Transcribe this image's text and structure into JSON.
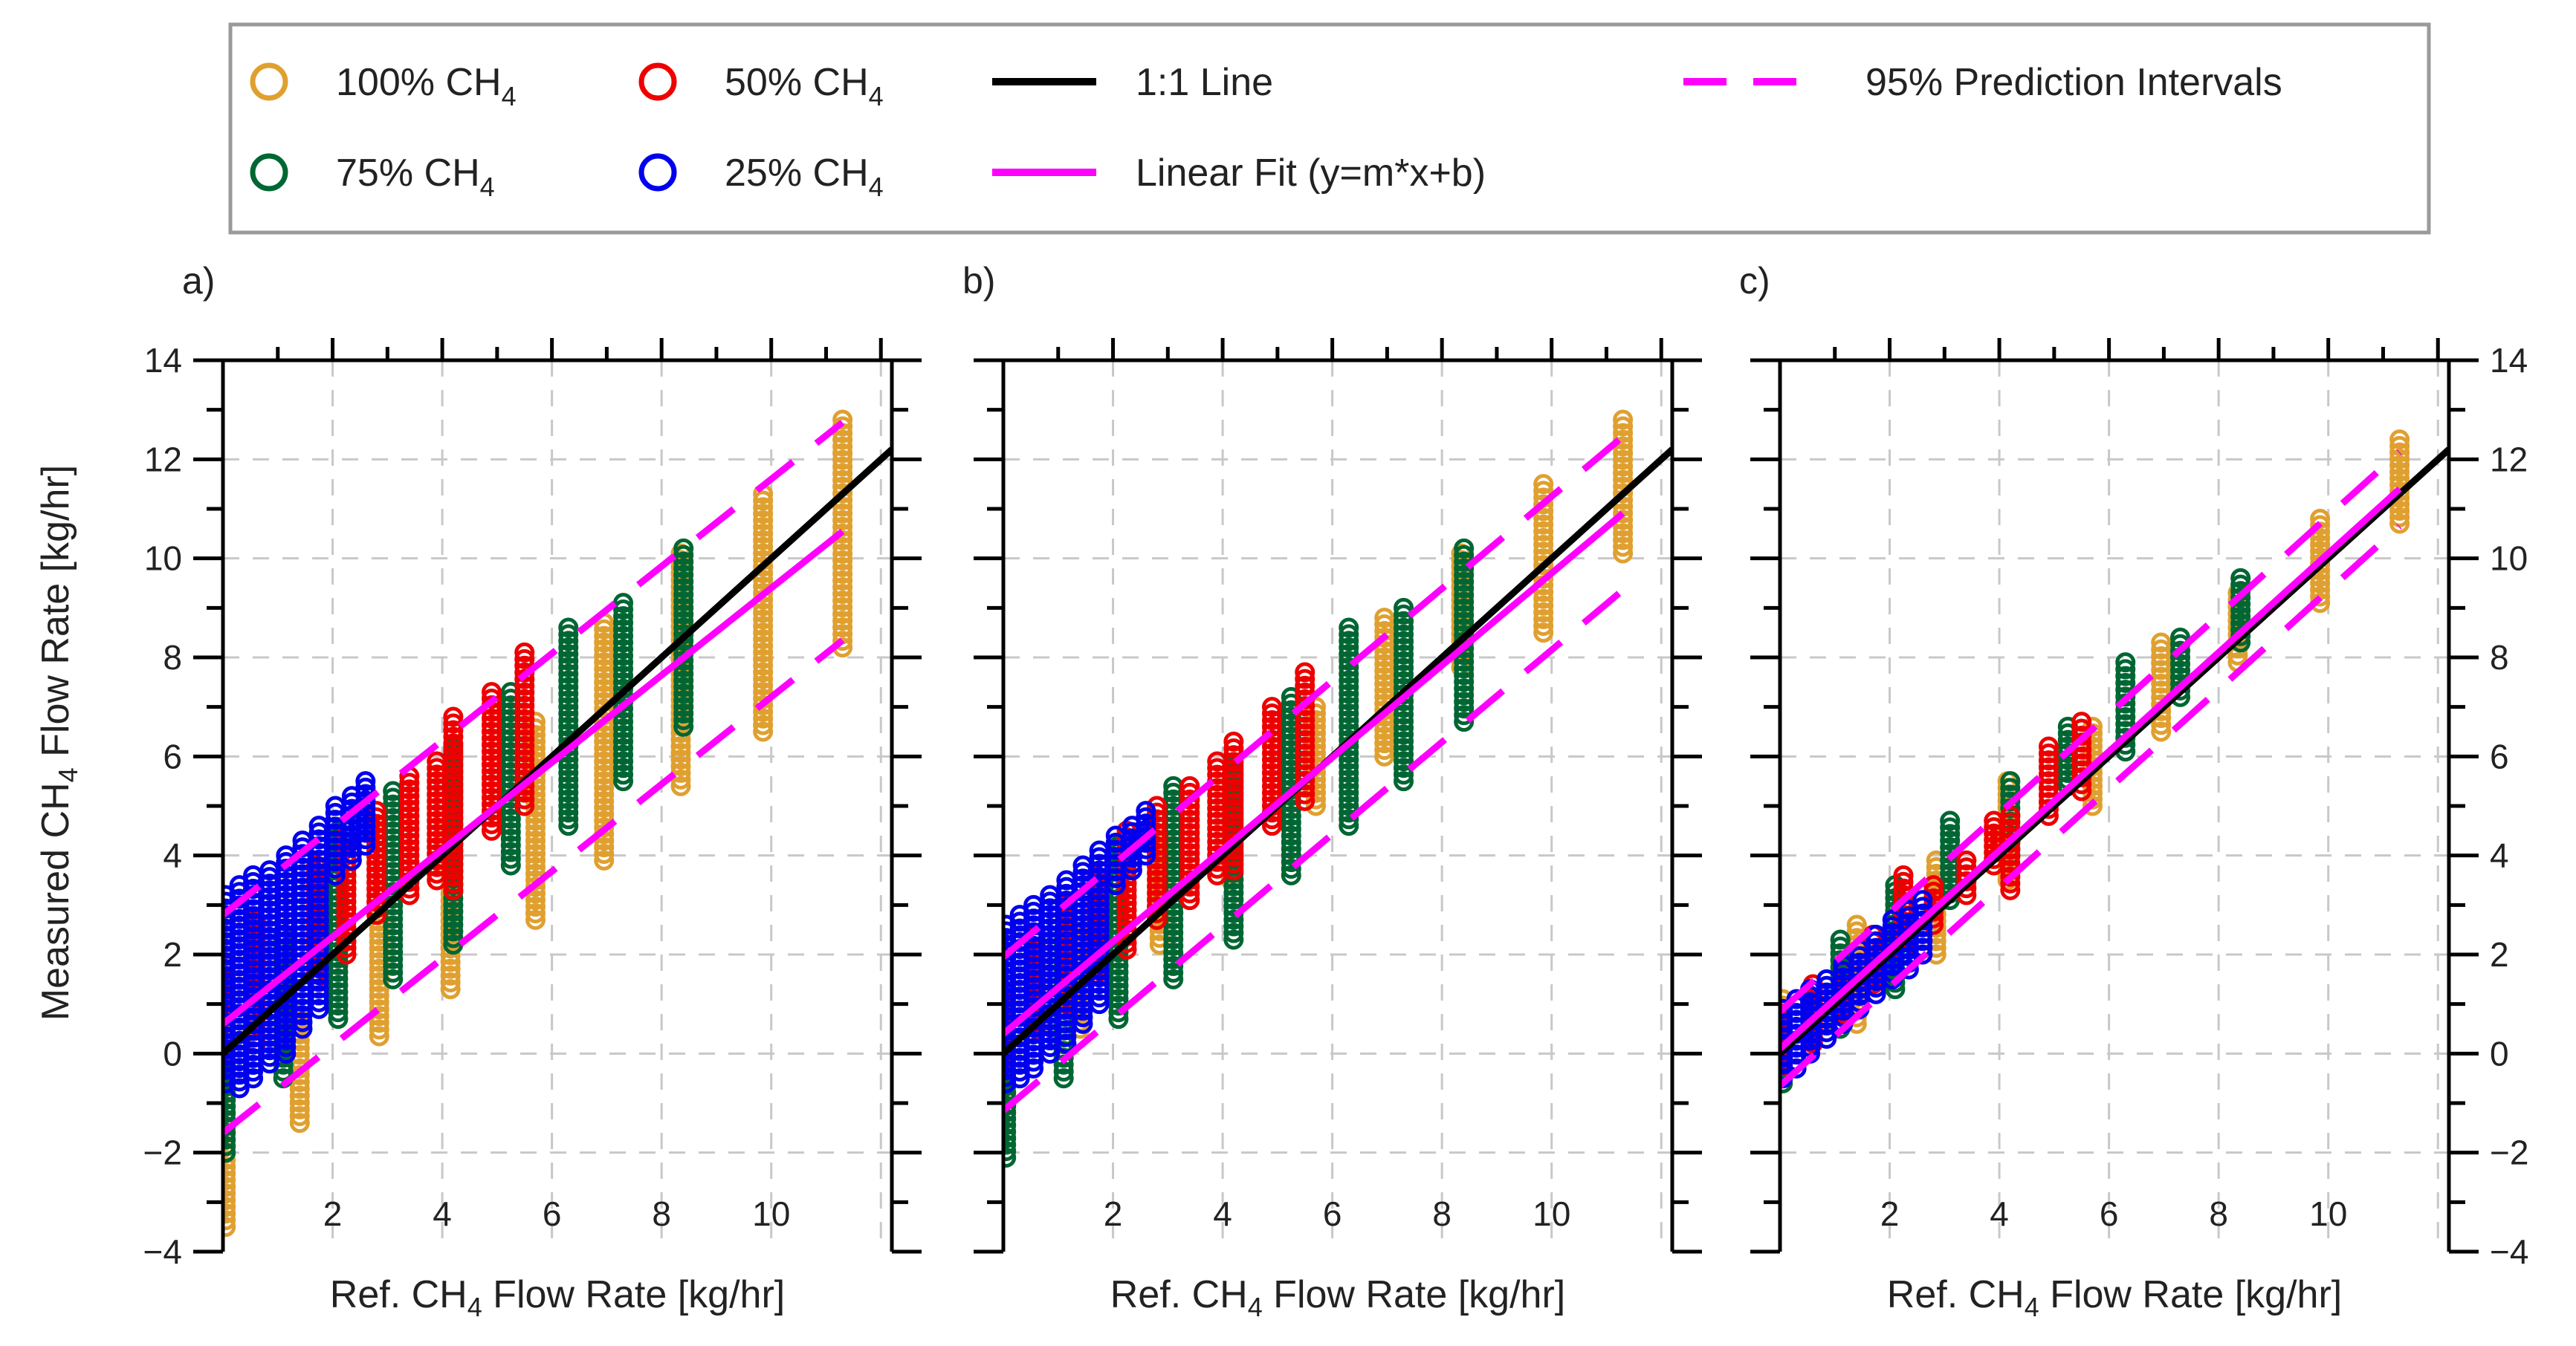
{
  "legend": {
    "items": [
      {
        "label": "100% CH",
        "sub": "4",
        "kind": "marker",
        "color": "#E0A030"
      },
      {
        "label": "50% CH",
        "sub": "4",
        "kind": "marker",
        "color": "#EE0000"
      },
      {
        "label": "1:1 Line",
        "kind": "solid",
        "color": "#000000"
      },
      {
        "label": "95% Prediction Intervals",
        "kind": "dashed",
        "color": "#FF00FF"
      },
      {
        "label": "75% CH",
        "sub": "4",
        "kind": "marker",
        "color": "#006633"
      },
      {
        "label": "25% CH",
        "sub": "4",
        "kind": "marker",
        "color": "#0000EE"
      },
      {
        "label": "Linear Fit (y=m*x+b)",
        "kind": "solid",
        "color": "#FF00FF"
      }
    ]
  },
  "axes": {
    "ylabel_main": "Measured CH",
    "ylabel_sub": "4",
    "ylabel_tail": " Flow Rate [kg/hr]",
    "xlabel_main": "Ref. CH",
    "xlabel_sub": "4",
    "xlabel_tail": " Flow Rate [kg/hr]",
    "x_ticks": [
      "2",
      "4",
      "6",
      "8",
      "10"
    ],
    "y_ticks": [
      "−4",
      "−2",
      "0",
      "2",
      "4",
      "6",
      "8",
      "10",
      "12",
      "14"
    ]
  },
  "chart_data": [
    {
      "panel": "a)",
      "type": "scatter",
      "xlim": [
        0,
        12.2
      ],
      "ylim": [
        -4,
        14
      ],
      "grid": true,
      "fit": {
        "slope": 0.88,
        "intercept": 0.6
      },
      "prediction_interval_offset": 2.2,
      "series": [
        {
          "name": "100% CH4",
          "color": "#E0A030",
          "x": [
            0.05,
            1.4,
            2.85,
            4.15,
            5.7,
            6.95,
            8.35,
            9.85,
            11.3
          ],
          "y_min": [
            -3.5,
            -1.4,
            0.35,
            1.3,
            2.7,
            3.9,
            5.4,
            6.5,
            8.2
          ],
          "y_max": [
            -0.8,
            0.8,
            2.8,
            4.6,
            6.7,
            8.7,
            10.1,
            11.3,
            12.8
          ]
        },
        {
          "name": "75% CH4",
          "color": "#006633",
          "x": [
            0.05,
            1.1,
            2.1,
            3.1,
            4.2,
            5.25,
            6.3,
            7.3,
            8.4
          ],
          "y_min": [
            -2.0,
            -0.5,
            0.7,
            1.5,
            2.2,
            3.8,
            4.6,
            5.5,
            6.6
          ],
          "y_max": [
            -0.4,
            2.4,
            4.5,
            5.3,
            6.2,
            7.3,
            8.6,
            9.1,
            10.2
          ]
        },
        {
          "name": "50% CH4",
          "color": "#EE0000",
          "x": [
            0.05,
            0.6,
            1.15,
            1.7,
            2.25,
            2.8,
            3.4,
            3.9,
            4.2,
            4.9,
            5.5
          ],
          "y_min": [
            -0.3,
            0.2,
            0.8,
            1.5,
            2.0,
            2.8,
            3.2,
            3.5,
            3.3,
            4.5,
            5.0
          ],
          "y_max": [
            1.8,
            2.7,
            3.2,
            3.8,
            4.4,
            4.9,
            5.6,
            5.9,
            6.8,
            7.3,
            8.1
          ]
        },
        {
          "name": "25% CH4",
          "color": "#0000EE",
          "x": [
            0.05,
            0.3,
            0.55,
            0.85,
            1.15,
            1.45,
            1.75,
            2.05,
            2.35,
            2.6
          ],
          "y_min": [
            -0.6,
            -0.7,
            -0.5,
            -0.2,
            0.0,
            0.5,
            0.9,
            3.6,
            3.9,
            4.2
          ],
          "y_max": [
            3.2,
            3.4,
            3.6,
            3.7,
            4.0,
            4.3,
            4.6,
            5.0,
            5.2,
            5.5
          ]
        }
      ]
    },
    {
      "panel": "b)",
      "type": "scatter",
      "xlim": [
        0,
        12.2
      ],
      "ylim": [
        -4,
        14
      ],
      "grid": true,
      "fit": {
        "slope": 0.93,
        "intercept": 0.4
      },
      "prediction_interval_offset": 1.55,
      "series": [
        {
          "name": "100% CH4",
          "color": "#E0A030",
          "x": [
            0.05,
            1.4,
            2.85,
            4.15,
            5.7,
            6.95,
            8.35,
            9.85,
            11.3
          ],
          "y_min": [
            -1.2,
            0.5,
            2.2,
            3.5,
            5.0,
            6.0,
            7.8,
            8.5,
            10.1
          ],
          "y_max": [
            0.2,
            2.5,
            4.4,
            5.5,
            7.0,
            8.8,
            10.1,
            11.5,
            12.8
          ]
        },
        {
          "name": "75% CH4",
          "color": "#006633",
          "x": [
            0.05,
            1.1,
            2.1,
            3.1,
            4.2,
            5.25,
            6.3,
            7.3,
            8.4
          ],
          "y_min": [
            -2.1,
            -0.5,
            0.7,
            1.5,
            2.3,
            3.6,
            4.6,
            5.5,
            6.7
          ],
          "y_max": [
            -0.4,
            2.4,
            4.2,
            5.4,
            5.8,
            7.2,
            8.6,
            9.0,
            10.2
          ]
        },
        {
          "name": "50% CH4",
          "color": "#EE0000",
          "x": [
            0.05,
            0.6,
            1.15,
            1.7,
            2.25,
            2.8,
            3.4,
            3.9,
            4.2,
            4.9,
            5.5
          ],
          "y_min": [
            -0.1,
            0.5,
            1.0,
            1.6,
            2.1,
            2.7,
            3.1,
            3.6,
            3.7,
            4.6,
            5.1
          ],
          "y_max": [
            1.5,
            2.4,
            3.0,
            3.6,
            4.5,
            5.0,
            5.4,
            5.9,
            6.3,
            7.0,
            7.7
          ]
        },
        {
          "name": "25% CH4",
          "color": "#0000EE",
          "x": [
            0.05,
            0.3,
            0.55,
            0.85,
            1.15,
            1.45,
            1.75,
            2.05,
            2.35,
            2.6
          ],
          "y_min": [
            -0.6,
            -0.5,
            -0.3,
            0.0,
            0.2,
            0.6,
            1.0,
            3.4,
            3.7,
            4.0
          ],
          "y_max": [
            2.6,
            2.8,
            3.0,
            3.2,
            3.5,
            3.8,
            4.1,
            4.4,
            4.6,
            4.9
          ]
        }
      ]
    },
    {
      "panel": "c)",
      "type": "scatter",
      "xlim": [
        0,
        12.2
      ],
      "ylim": [
        -4,
        14
      ],
      "grid": true,
      "fit": {
        "slope": 1.0,
        "intercept": 0.1
      },
      "prediction_interval_offset": 0.75,
      "series": [
        {
          "name": "100% CH4",
          "color": "#E0A030",
          "x": [
            0.05,
            1.4,
            2.85,
            4.15,
            5.7,
            6.95,
            8.35,
            9.85,
            11.3
          ],
          "y_min": [
            -0.6,
            0.6,
            2.0,
            3.5,
            5.0,
            6.5,
            7.9,
            9.1,
            10.7
          ],
          "y_max": [
            1.1,
            2.6,
            3.9,
            5.5,
            6.6,
            8.3,
            9.3,
            10.8,
            12.4
          ]
        },
        {
          "name": "75% CH4",
          "color": "#006633",
          "x": [
            0.05,
            1.1,
            2.1,
            3.1,
            4.2,
            5.25,
            6.3,
            7.3,
            8.4
          ],
          "y_min": [
            -0.6,
            0.5,
            1.3,
            3.1,
            4.0,
            5.4,
            6.1,
            7.2,
            8.3
          ],
          "y_max": [
            0.9,
            2.3,
            3.4,
            4.7,
            5.5,
            6.6,
            7.9,
            8.4,
            9.6
          ]
        },
        {
          "name": "50% CH4",
          "color": "#EE0000",
          "x": [
            0.05,
            0.6,
            1.15,
            1.7,
            2.25,
            2.8,
            3.4,
            3.9,
            4.2,
            4.9,
            5.5
          ],
          "y_min": [
            -0.5,
            0.2,
            0.8,
            1.4,
            2.0,
            2.6,
            3.2,
            3.8,
            3.3,
            4.8,
            5.3
          ],
          "y_max": [
            0.8,
            1.4,
            1.8,
            2.4,
            3.6,
            3.4,
            3.9,
            4.7,
            4.8,
            6.2,
            6.7
          ]
        },
        {
          "name": "25% CH4",
          "color": "#0000EE",
          "x": [
            0.05,
            0.3,
            0.55,
            0.85,
            1.15,
            1.45,
            1.75,
            2.05,
            2.35,
            2.6
          ],
          "y_min": [
            -0.5,
            -0.3,
            0.0,
            0.3,
            0.6,
            0.9,
            1.2,
            1.5,
            1.7,
            2.0
          ],
          "y_max": [
            0.9,
            1.1,
            1.3,
            1.5,
            1.8,
            2.1,
            2.4,
            2.7,
            2.9,
            3.1
          ]
        }
      ]
    }
  ]
}
